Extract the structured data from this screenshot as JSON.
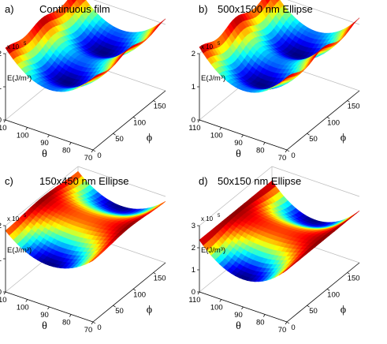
{
  "colors": {
    "surface_low": "#0000b0",
    "surface_high": "#800000",
    "box_line": "#bbbbbb",
    "axis_line": "#000000"
  },
  "colormap": "jet",
  "chart_data": [
    {
      "type": "surface",
      "panel_label": "a)",
      "title": "Continuous film",
      "xlabel": "θ",
      "ylabel": "ϕ",
      "zlabel": "E(J/m³)",
      "z_scale_text": "x 10",
      "z_scale_exp": "5",
      "theta_range": [
        70,
        110
      ],
      "phi_range": [
        0,
        180
      ],
      "z_range": [
        0,
        2
      ],
      "theta_ticks": [
        "110",
        "100",
        "90",
        "80",
        "70"
      ],
      "phi_ticks": [
        "0",
        "50",
        "100",
        "150"
      ],
      "z_ticks": [
        "0",
        "1",
        "2"
      ],
      "shape": "quadratic valley along theta, minimum at theta 90, periodic minima in phi at 45 and 135, energy about 1.2e5 to 2e5"
    },
    {
      "type": "surface",
      "panel_label": "b)",
      "title": "500x1500 nm Ellipse",
      "xlabel": "θ",
      "ylabel": "ϕ",
      "zlabel": "E(J/m³)",
      "z_scale_text": "x 10",
      "z_scale_exp": "5",
      "theta_range": [
        70,
        110
      ],
      "phi_range": [
        0,
        180
      ],
      "z_range": [
        0,
        2
      ],
      "theta_ticks": [
        "110",
        "100",
        "90",
        "80",
        "70"
      ],
      "phi_ticks": [
        "0",
        "50",
        "100",
        "150"
      ],
      "z_ticks": [
        "0",
        "1",
        "2"
      ],
      "shape": "quadratic valley along theta, minimum at theta 90, minima in phi near 45 and 135"
    },
    {
      "type": "surface",
      "panel_label": "c)",
      "title": "150x450 nm Ellipse",
      "xlabel": "θ",
      "ylabel": "ϕ",
      "zlabel": "E(J/m³)",
      "z_scale_text": "x 10",
      "z_scale_exp": "5",
      "theta_range": [
        70,
        110
      ],
      "phi_range": [
        0,
        180
      ],
      "z_range": [
        0,
        2
      ],
      "theta_ticks": [
        "110",
        "100",
        "90",
        "80",
        "70"
      ],
      "phi_ticks": [
        "0",
        "50",
        "100",
        "150"
      ],
      "z_ticks": [
        "0",
        "1",
        "2"
      ],
      "shape": "saddle: minima at phi 0 and 180 near theta 90, maximum near phi 90"
    },
    {
      "type": "surface",
      "panel_label": "d)",
      "title": "50x150 nm Ellipse",
      "xlabel": "θ",
      "ylabel": "ϕ",
      "zlabel": "E(J/m³)",
      "z_scale_text": "x 10",
      "z_scale_exp": "5",
      "theta_range": [
        70,
        110
      ],
      "phi_range": [
        0,
        180
      ],
      "z_range": [
        0,
        3
      ],
      "theta_ticks": [
        "110",
        "100",
        "90",
        "80",
        "70"
      ],
      "phi_ticks": [
        "0",
        "50",
        "100",
        "150"
      ],
      "z_ticks": [
        "0",
        "1",
        "2",
        "3"
      ],
      "shape": "deep saddle: minima at phi 0 and 180 near theta 90, maximum at phi 90 and theta extremes"
    }
  ]
}
